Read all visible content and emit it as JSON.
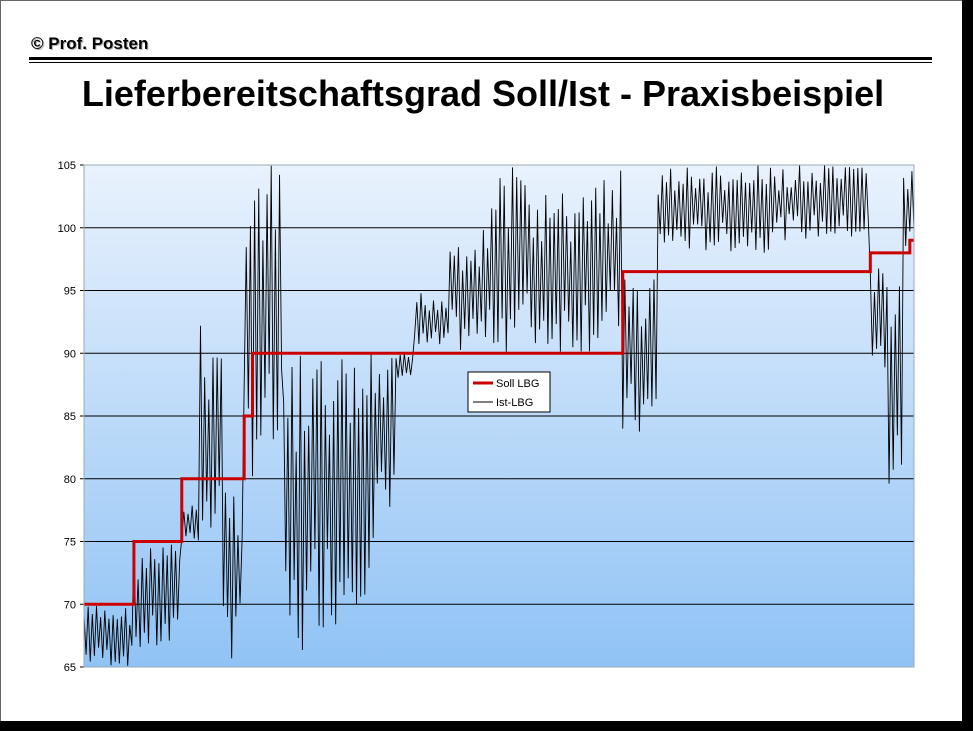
{
  "header": {
    "copyright": "© Prof. Posten",
    "title": "Lieferbereitschaftsgrad Soll/Ist - Praxisbeispiel"
  },
  "colors": {
    "soll": "#cc0000",
    "ist": "#000000",
    "plot_top": "#e9f2fd",
    "plot_bottom": "#90c3f5"
  },
  "chart_data": {
    "type": "line",
    "ylim": [
      65,
      105
    ],
    "yticks": [
      65,
      70,
      75,
      80,
      85,
      90,
      95,
      100,
      105
    ],
    "grid": true,
    "legend_position": "center",
    "n_points": 400,
    "series": [
      {
        "name": "Soll LBG",
        "color": "#cc0000",
        "steps": [
          {
            "from": 0,
            "to": 23,
            "value": 70
          },
          {
            "from": 24,
            "to": 46,
            "value": 75
          },
          {
            "from": 47,
            "to": 76,
            "value": 80
          },
          {
            "from": 77,
            "to": 80,
            "value": 85
          },
          {
            "from": 81,
            "to": 158,
            "value": 90
          },
          {
            "from": 159,
            "to": 258,
            "value": 90
          },
          {
            "from": 259,
            "to": 377,
            "value": 96.5
          },
          {
            "from": 378,
            "to": 396,
            "value": 98
          },
          {
            "from": 397,
            "to": 399,
            "value": 99
          }
        ]
      },
      {
        "name": "Ist-LBG",
        "color": "#000000",
        "segments": [
          {
            "from": 0,
            "to": 23,
            "low": 65,
            "high": 70
          },
          {
            "from": 24,
            "to": 46,
            "low": 66,
            "high": 75
          },
          {
            "from": 47,
            "to": 55,
            "low": 75,
            "high": 78
          },
          {
            "from": 56,
            "to": 66,
            "low": 74,
            "high": 92.5
          },
          {
            "from": 67,
            "to": 70,
            "low": 68,
            "high": 80
          },
          {
            "from": 71,
            "to": 76,
            "low": 65,
            "high": 80
          },
          {
            "from": 77,
            "to": 95,
            "low": 80,
            "high": 105
          },
          {
            "from": 96,
            "to": 110,
            "low": 65,
            "high": 90
          },
          {
            "from": 111,
            "to": 125,
            "low": 68,
            "high": 90
          },
          {
            "from": 126,
            "to": 140,
            "low": 70,
            "high": 90
          },
          {
            "from": 141,
            "to": 150,
            "low": 76,
            "high": 90
          },
          {
            "from": 151,
            "to": 158,
            "low": 88,
            "high": 90
          },
          {
            "from": 159,
            "to": 175,
            "low": 90,
            "high": 95
          },
          {
            "from": 176,
            "to": 195,
            "low": 90,
            "high": 100
          },
          {
            "from": 196,
            "to": 215,
            "low": 90,
            "high": 105
          },
          {
            "from": 216,
            "to": 240,
            "low": 90,
            "high": 103
          },
          {
            "from": 241,
            "to": 258,
            "low": 90,
            "high": 105
          },
          {
            "from": 259,
            "to": 275,
            "low": 83,
            "high": 96.5
          },
          {
            "from": 276,
            "to": 330,
            "low": 98,
            "high": 105
          },
          {
            "from": 331,
            "to": 377,
            "low": 99,
            "high": 105
          },
          {
            "from": 378,
            "to": 386,
            "low": 88,
            "high": 98
          },
          {
            "from": 387,
            "to": 393,
            "low": 78,
            "high": 96
          },
          {
            "from": 394,
            "to": 399,
            "low": 98,
            "high": 105
          }
        ]
      }
    ]
  }
}
